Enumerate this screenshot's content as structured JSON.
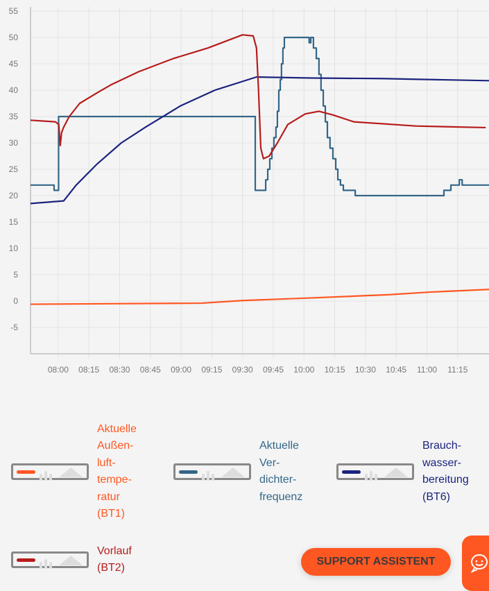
{
  "chart_data": {
    "type": "line",
    "xlabel": "",
    "ylabel": "",
    "x_unit": "minutes since midnight",
    "xlim": [
      466.5,
      690.3
    ],
    "ylim": [
      -10,
      55
    ],
    "yticks": [
      55,
      50,
      45,
      40,
      35,
      30,
      25,
      20,
      15,
      10,
      5,
      0,
      -5
    ],
    "xticks": [
      {
        "t": 480,
        "label": "08:00"
      },
      {
        "t": 495,
        "label": "08:15"
      },
      {
        "t": 510,
        "label": "08:30"
      },
      {
        "t": 525,
        "label": "08:45"
      },
      {
        "t": 540,
        "label": "09:00"
      },
      {
        "t": 555,
        "label": "09:15"
      },
      {
        "t": 570,
        "label": "09:30"
      },
      {
        "t": 585,
        "label": "09:45"
      },
      {
        "t": 600,
        "label": "10:00"
      },
      {
        "t": 615,
        "label": "10:15"
      },
      {
        "t": 630,
        "label": "10:30"
      },
      {
        "t": 645,
        "label": "10:45"
      },
      {
        "t": 660,
        "label": "11:00"
      },
      {
        "t": 675,
        "label": "11:15"
      }
    ],
    "grid": true,
    "series": [
      {
        "name": "Aktuelle Außenlufttemperatur (BT1)",
        "color": "#ff5722",
        "step": false,
        "points": [
          [
            466.5,
            -0.6
          ],
          [
            549.8,
            -0.4
          ],
          [
            570,
            0.1
          ],
          [
            604,
            0.6
          ],
          [
            641.2,
            1.2
          ],
          [
            661.5,
            1.7
          ],
          [
            690.3,
            2.2
          ]
        ]
      },
      {
        "name": "Aktuelle Verdichterfrequenz",
        "color": "#336688",
        "step": true,
        "points": [
          [
            466.5,
            22
          ],
          [
            478,
            21
          ],
          [
            480.2,
            35
          ],
          [
            576.2,
            21
          ],
          [
            581.3,
            23
          ],
          [
            582.3,
            25
          ],
          [
            583.3,
            27
          ],
          [
            584.3,
            29
          ],
          [
            585.3,
            31
          ],
          [
            586.3,
            33
          ],
          [
            587,
            36
          ],
          [
            587.7,
            40
          ],
          [
            588.4,
            42
          ],
          [
            589,
            45
          ],
          [
            589.7,
            48
          ],
          [
            590.4,
            50
          ],
          [
            602.5,
            49
          ],
          [
            603.3,
            50
          ],
          [
            604.6,
            48
          ],
          [
            606,
            46
          ],
          [
            607.3,
            43
          ],
          [
            608.3,
            40
          ],
          [
            609.4,
            37
          ],
          [
            610.4,
            34
          ],
          [
            611.4,
            31
          ],
          [
            612.7,
            29
          ],
          [
            614.1,
            27
          ],
          [
            615.5,
            25
          ],
          [
            616.5,
            23
          ],
          [
            617.8,
            22
          ],
          [
            619.2,
            21
          ],
          [
            625,
            20
          ],
          [
            668.3,
            21
          ],
          [
            671.7,
            22
          ],
          [
            675.8,
            23
          ],
          [
            677.2,
            22
          ],
          [
            690.3,
            22
          ]
        ]
      },
      {
        "name": "Brauchwasserbereitung (BT6)",
        "color": "#1a237e",
        "step": false,
        "points": [
          [
            466.5,
            18.5
          ],
          [
            482.7,
            19
          ],
          [
            488.8,
            22
          ],
          [
            499,
            26
          ],
          [
            510.8,
            30
          ],
          [
            522.7,
            33
          ],
          [
            539.6,
            37
          ],
          [
            556.5,
            40
          ],
          [
            576.8,
            42.5
          ],
          [
            603.9,
            42.3
          ],
          [
            637.8,
            42.2
          ],
          [
            690.3,
            41.8
          ]
        ]
      },
      {
        "name": "Vorlauf (BT2)",
        "color": "#b71c1c",
        "step": false,
        "points": [
          [
            466.5,
            34.3
          ],
          [
            478.6,
            34
          ],
          [
            480.3,
            33.5
          ],
          [
            481,
            29.5
          ],
          [
            481.7,
            32
          ],
          [
            482.7,
            33
          ],
          [
            485.4,
            35
          ],
          [
            490.5,
            37.5
          ],
          [
            499,
            39.5
          ],
          [
            505.7,
            41
          ],
          [
            519.3,
            43.5
          ],
          [
            536.2,
            46
          ],
          [
            553.1,
            48
          ],
          [
            570,
            50.5
          ],
          [
            575.2,
            50.3
          ],
          [
            576.8,
            48
          ],
          [
            577.8,
            40
          ],
          [
            578.9,
            29
          ],
          [
            580.2,
            27
          ],
          [
            583,
            27.5
          ],
          [
            587,
            30
          ],
          [
            592.1,
            33.5
          ],
          [
            600.6,
            35.5
          ],
          [
            607.3,
            36
          ],
          [
            614.1,
            35.3
          ],
          [
            624.3,
            34
          ],
          [
            654.7,
            33.2
          ],
          [
            688.7,
            32.9
          ]
        ]
      }
    ]
  },
  "legend": [
    {
      "label": "Aktuelle Außen-luft-tempe-ratur (BT1)",
      "lines": [
        "Aktuelle",
        "Außen-",
        "luft-",
        "tempe-",
        "ratur",
        "(BT1)"
      ],
      "color": "#ff5722"
    },
    {
      "label": "Aktuelle Ver-dichter-frequenz",
      "lines": [
        "Aktuelle",
        "Ver-",
        "dichter-",
        "frequenz"
      ],
      "color": "#336688"
    },
    {
      "label": "Brauch-wasser-bereitung (BT6)",
      "lines": [
        "Brauch-",
        "wasser-",
        "bereitung",
        "(BT6)"
      ],
      "color": "#1a237e"
    },
    {
      "label": "Vorlauf (BT2)",
      "lines": [
        "Vorlauf",
        "(BT2)"
      ],
      "color": "#b71c1c"
    }
  ],
  "support": {
    "label": "SUPPORT ASSISTENT"
  },
  "chat": {
    "icon": "chat-smiley-icon"
  }
}
